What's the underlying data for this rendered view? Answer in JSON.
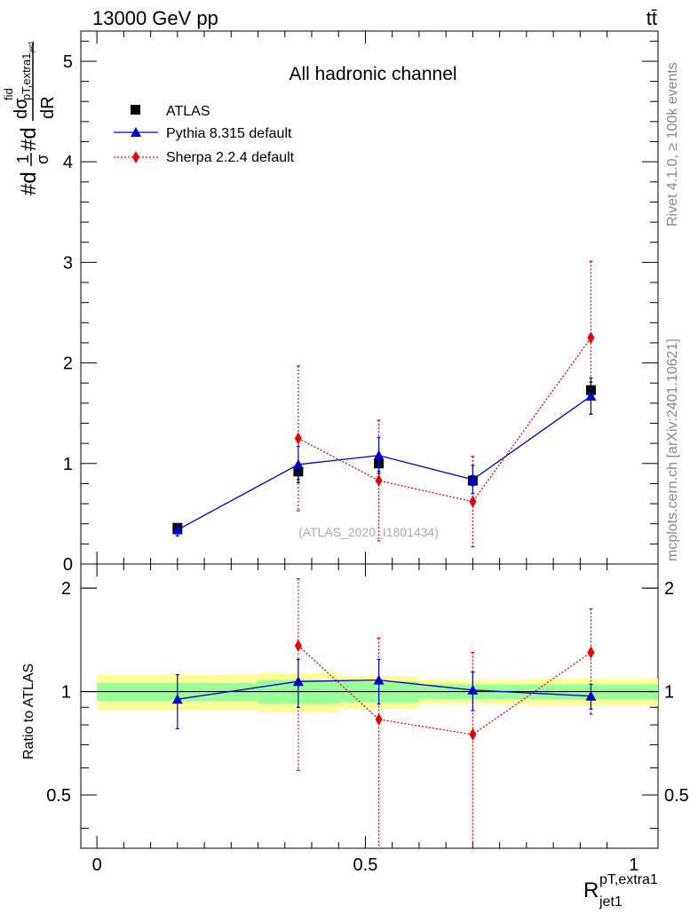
{
  "header": {
    "energy_label": "13000 GeV pp",
    "process_label": "tt̄"
  },
  "side_labels": {
    "rivet": "Rivet 4.1.0, ≥ 100k events",
    "mcplots": "mcplots.cern.ch [arXiv:2401.10621]"
  },
  "chart_data": {
    "type": "line",
    "title": "All hadronic channel",
    "analysis_label": "(ATLAS_2020_I1801434)",
    "ylabel_main": "#d1/σ#dσ^fid/dR^pT,extra1_jet1",
    "ylabel_main_parts": {
      "prefix": "#d",
      "frac1_num": "1",
      "frac1_den": "σ",
      "mid": "#d",
      "frac2_num": "dσ",
      "frac2_num_sup": "fid",
      "frac2_num_sub": "pT,extra1",
      "frac2_num_subsub": "jet1",
      "frac2_den": "dR"
    },
    "ylabel_ratio": "Ratio to ATLAS",
    "xlabel": "R",
    "xlabel_sup": "pT,extra1",
    "xlabel_sub": "jet1",
    "xlim": [
      -0.03,
      1.045
    ],
    "ylim_main": [
      0,
      5.3
    ],
    "ylim_ratio": [
      0.35,
      2.35
    ],
    "x_ticks": [
      "0",
      "0.5",
      "1"
    ],
    "y_ticks_main": [
      "0",
      "1",
      "2",
      "3",
      "4",
      "5"
    ],
    "y_ticks_ratio": [
      "0.5",
      "1",
      "2"
    ],
    "legend": [
      {
        "name": "ATLAS",
        "color": "#000000",
        "marker": "square"
      },
      {
        "name": "Pythia 8.315 default",
        "color": "#0000cc",
        "marker": "triangle"
      },
      {
        "name": "Sherpa 2.2.4 default",
        "color": "#ee0000",
        "marker": "diamond"
      }
    ],
    "bins": [
      {
        "lo": 0.0,
        "hi": 0.3
      },
      {
        "lo": 0.3,
        "hi": 0.45
      },
      {
        "lo": 0.45,
        "hi": 0.6
      },
      {
        "lo": 0.6,
        "hi": 0.8
      },
      {
        "lo": 0.8,
        "hi": 1.05
      }
    ],
    "atlas": {
      "x": [
        0.15,
        0.375,
        0.525,
        0.7,
        0.92
      ],
      "y": [
        0.36,
        0.92,
        1.0,
        0.83,
        1.73
      ],
      "err": [
        0.04,
        0.08,
        0.08,
        0.05,
        0.08
      ]
    },
    "band_inner": [
      0.06,
      0.08,
      0.07,
      0.05,
      0.05
    ],
    "band_outer": [
      0.12,
      0.13,
      0.11,
      0.08,
      0.09
    ],
    "series": [
      {
        "name": "Pythia 8.315 default",
        "x": [
          0.15,
          0.375,
          0.525,
          0.7,
          0.92
        ],
        "y": [
          0.34,
          0.99,
          1.08,
          0.84,
          1.67
        ],
        "err": [
          0.06,
          0.18,
          0.18,
          0.14,
          0.18
        ],
        "ratio": [
          0.95,
          1.07,
          1.08,
          1.01,
          0.97
        ],
        "ratio_err": [
          0.17,
          0.17,
          0.16,
          0.13,
          0.08
        ]
      },
      {
        "name": "Sherpa 2.2.4 default",
        "x": [
          0.375,
          0.525,
          0.7,
          0.92
        ],
        "y": [
          1.25,
          0.83,
          0.62,
          2.25
        ],
        "err": [
          0.72,
          0.6,
          0.45,
          0.76
        ],
        "ratio": [
          1.36,
          0.83,
          0.75,
          1.3
        ],
        "ratio_err": [
          0.77,
          0.6,
          0.55,
          0.44
        ]
      }
    ]
  }
}
